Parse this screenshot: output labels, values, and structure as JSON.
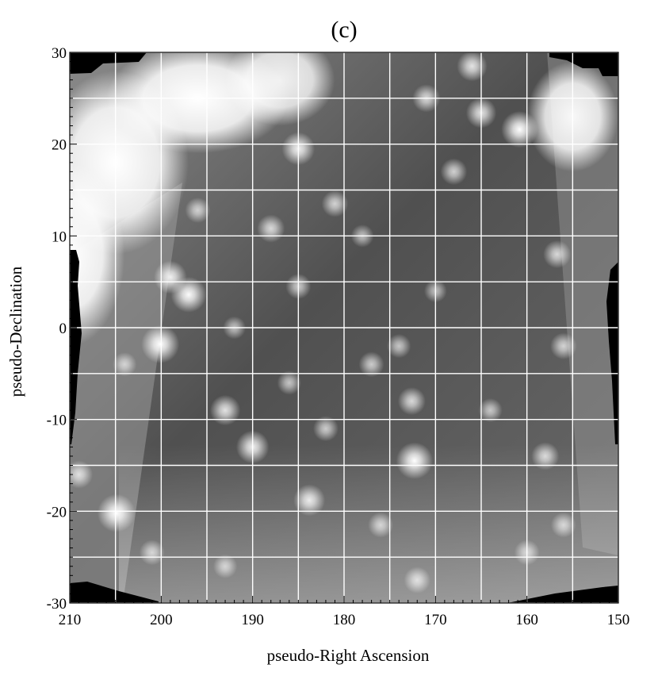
{
  "chart_data": {
    "type": "heatmap",
    "title": "(c)",
    "xlabel": "pseudo-Right Ascension",
    "ylabel": "pseudo-Declination",
    "xlim": [
      210,
      150
    ],
    "ylim": [
      -30,
      30
    ],
    "x_ticks": [
      "210",
      "200",
      "190",
      "180",
      "170",
      "160",
      "150"
    ],
    "y_ticks": [
      "30",
      "20",
      "10",
      "0",
      "-10",
      "-20",
      "-30"
    ],
    "grid": true,
    "colormap": "grayscale",
    "colors": {
      "background": "#ffffff",
      "grid": "#ffffff",
      "masked": "#000000"
    },
    "sources": [
      {
        "x": 200.1,
        "y": -1.8,
        "i": 1.0
      },
      {
        "x": 197.0,
        "y": 3.6,
        "i": 0.9
      },
      {
        "x": 199.0,
        "y": 5.5,
        "i": 0.8
      },
      {
        "x": 204.9,
        "y": -20.2,
        "i": 1.0
      },
      {
        "x": 190.0,
        "y": -13.0,
        "i": 0.8
      },
      {
        "x": 193.0,
        "y": -9.0,
        "i": 0.7
      },
      {
        "x": 183.8,
        "y": -18.8,
        "i": 0.75
      },
      {
        "x": 172.3,
        "y": -14.5,
        "i": 0.95
      },
      {
        "x": 172.6,
        "y": -8.0,
        "i": 0.6
      },
      {
        "x": 160.8,
        "y": 21.6,
        "i": 0.95
      },
      {
        "x": 165.0,
        "y": 23.4,
        "i": 0.7
      },
      {
        "x": 166.0,
        "y": 28.5,
        "i": 0.7
      },
      {
        "x": 171.0,
        "y": 25.0,
        "i": 0.6
      },
      {
        "x": 156.7,
        "y": 8.0,
        "i": 0.6
      },
      {
        "x": 156.0,
        "y": -2.0,
        "i": 0.55
      },
      {
        "x": 158.0,
        "y": -14.0,
        "i": 0.6
      },
      {
        "x": 188.0,
        "y": 10.8,
        "i": 0.6
      },
      {
        "x": 181.0,
        "y": 13.5,
        "i": 0.55
      },
      {
        "x": 196.0,
        "y": 12.8,
        "i": 0.5
      },
      {
        "x": 185.0,
        "y": 4.5,
        "i": 0.5
      },
      {
        "x": 177.0,
        "y": -4.0,
        "i": 0.5
      },
      {
        "x": 174.0,
        "y": -2.0,
        "i": 0.45
      },
      {
        "x": 186.0,
        "y": -6.0,
        "i": 0.45
      },
      {
        "x": 182.0,
        "y": -11.0,
        "i": 0.5
      },
      {
        "x": 168.0,
        "y": 17.0,
        "i": 0.55
      },
      {
        "x": 164.0,
        "y": -9.0,
        "i": 0.45
      },
      {
        "x": 176.0,
        "y": -21.5,
        "i": 0.5
      },
      {
        "x": 160.0,
        "y": -24.5,
        "i": 0.5
      },
      {
        "x": 172.0,
        "y": -27.5,
        "i": 0.55
      },
      {
        "x": 156.0,
        "y": -21.5,
        "i": 0.5
      },
      {
        "x": 209.0,
        "y": -16.0,
        "i": 0.6
      },
      {
        "x": 201.0,
        "y": -24.5,
        "i": 0.5
      },
      {
        "x": 193.0,
        "y": -26.0,
        "i": 0.45
      },
      {
        "x": 185.0,
        "y": 19.5,
        "i": 0.8
      },
      {
        "x": 178.0,
        "y": 10.0,
        "i": 0.4
      },
      {
        "x": 192.0,
        "y": 0.0,
        "i": 0.4
      },
      {
        "x": 170.0,
        "y": 4.0,
        "i": 0.4
      },
      {
        "x": 204.0,
        "y": -4.0,
        "i": 0.45
      }
    ],
    "diffuse": [
      {
        "x": 196.0,
        "y": 25.0,
        "w": 10.0,
        "h": 6.0,
        "i": 1.0
      },
      {
        "x": 205.0,
        "y": 18.0,
        "w": 8.0,
        "h": 10.0,
        "i": 1.0
      },
      {
        "x": 210.0,
        "y": 8.0,
        "w": 6.0,
        "h": 10.0,
        "i": 1.0
      },
      {
        "x": 187.0,
        "y": 27.0,
        "w": 6.0,
        "h": 5.0,
        "i": 0.9
      },
      {
        "x": 155.0,
        "y": 23.0,
        "w": 5.0,
        "h": 6.0,
        "i": 0.95
      }
    ]
  }
}
